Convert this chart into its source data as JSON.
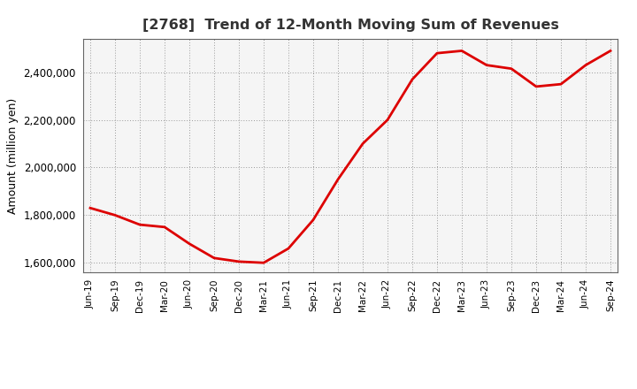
{
  "title": "[2768]  Trend of 12-Month Moving Sum of Revenues",
  "ylabel": "Amount (million yen)",
  "line_color": "#dd0000",
  "line_width": 2.0,
  "background_color": "#ffffff",
  "plot_bg_color": "#f5f5f5",
  "grid_color": "#999999",
  "ylim": [
    1560000,
    2540000
  ],
  "yticks": [
    1600000,
    1800000,
    2000000,
    2200000,
    2400000
  ],
  "labels": [
    "Jun-19",
    "Sep-19",
    "Dec-19",
    "Mar-20",
    "Jun-20",
    "Sep-20",
    "Dec-20",
    "Mar-21",
    "Jun-21",
    "Sep-21",
    "Dec-21",
    "Mar-22",
    "Jun-22",
    "Sep-22",
    "Dec-22",
    "Mar-23",
    "Jun-23",
    "Sep-23",
    "Dec-23",
    "Mar-24",
    "Jun-24",
    "Sep-24"
  ],
  "values": [
    1830000,
    1800000,
    1760000,
    1750000,
    1680000,
    1620000,
    1605000,
    1600000,
    1660000,
    1780000,
    1950000,
    2100000,
    2200000,
    2370000,
    2480000,
    2490000,
    2430000,
    2415000,
    2340000,
    2350000,
    2430000,
    2490000
  ]
}
